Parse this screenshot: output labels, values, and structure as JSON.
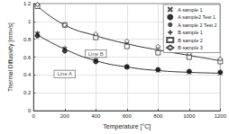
{
  "chart_data": {
    "type": "scatter",
    "x_label": "Temperature [°C]",
    "y_label": "Thermal Diffusivity [mm²/s]",
    "x": [
      25,
      200,
      400,
      600,
      800,
      1000,
      1200
    ],
    "xlim": [
      0,
      1200
    ],
    "xticks": [
      0,
      200,
      400,
      600,
      800,
      1000,
      1200
    ],
    "ylim": [
      0,
      1.2
    ],
    "yticks": [
      0,
      0.2,
      0.4,
      0.6,
      0.8,
      1,
      1.2
    ],
    "grid": true,
    "legend": "top-right",
    "series": [
      {
        "name": "A sample 1",
        "marker": "x",
        "color": "#222222",
        "values": [
          0.86,
          0.69,
          0.56,
          0.49,
          0.45,
          0.43,
          0.42
        ]
      },
      {
        "name": "A sample2 Test 1",
        "marker": "circle",
        "color": "#111111",
        "values": [
          0.84,
          0.67,
          0.55,
          0.49,
          0.46,
          0.44,
          0.43
        ]
      },
      {
        "name": "A sample 2 Test 2",
        "marker": "star",
        "color": "#222222",
        "values": [
          0.87,
          0.7,
          0.57,
          0.5,
          0.46,
          0.44,
          0.43
        ]
      },
      {
        "name": "B sample 1",
        "marker": "plus",
        "color": "#222222",
        "values": [
          1.18,
          0.96,
          0.85,
          0.76,
          0.7,
          0.63,
          0.57
        ]
      },
      {
        "name": "B sample 2",
        "marker": "square",
        "color": "#222222",
        "values": [
          1.17,
          0.96,
          0.82,
          0.72,
          0.65,
          0.6,
          0.55
        ]
      },
      {
        "name": "B sample 3",
        "marker": "diamond",
        "color": "#222222",
        "values": [
          1.19,
          0.96,
          0.86,
          0.78,
          0.72,
          0.64,
          0.58
        ]
      },
      {
        "type": "line",
        "line_style": "solid",
        "color": "#333333",
        "values": [
          1.17,
          0.96,
          0.84,
          0.75,
          0.68,
          0.62,
          0.56
        ]
      },
      {
        "type": "line",
        "line_style": "solid",
        "color": "#333333",
        "values": [
          0.85,
          0.69,
          0.56,
          0.49,
          0.45,
          0.43,
          0.42
        ]
      }
    ],
    "annotations": [
      {
        "text": "Line B",
        "x": 400,
        "y": 0.64
      },
      {
        "text": "Line A",
        "x": 200,
        "y": 0.41
      }
    ]
  }
}
